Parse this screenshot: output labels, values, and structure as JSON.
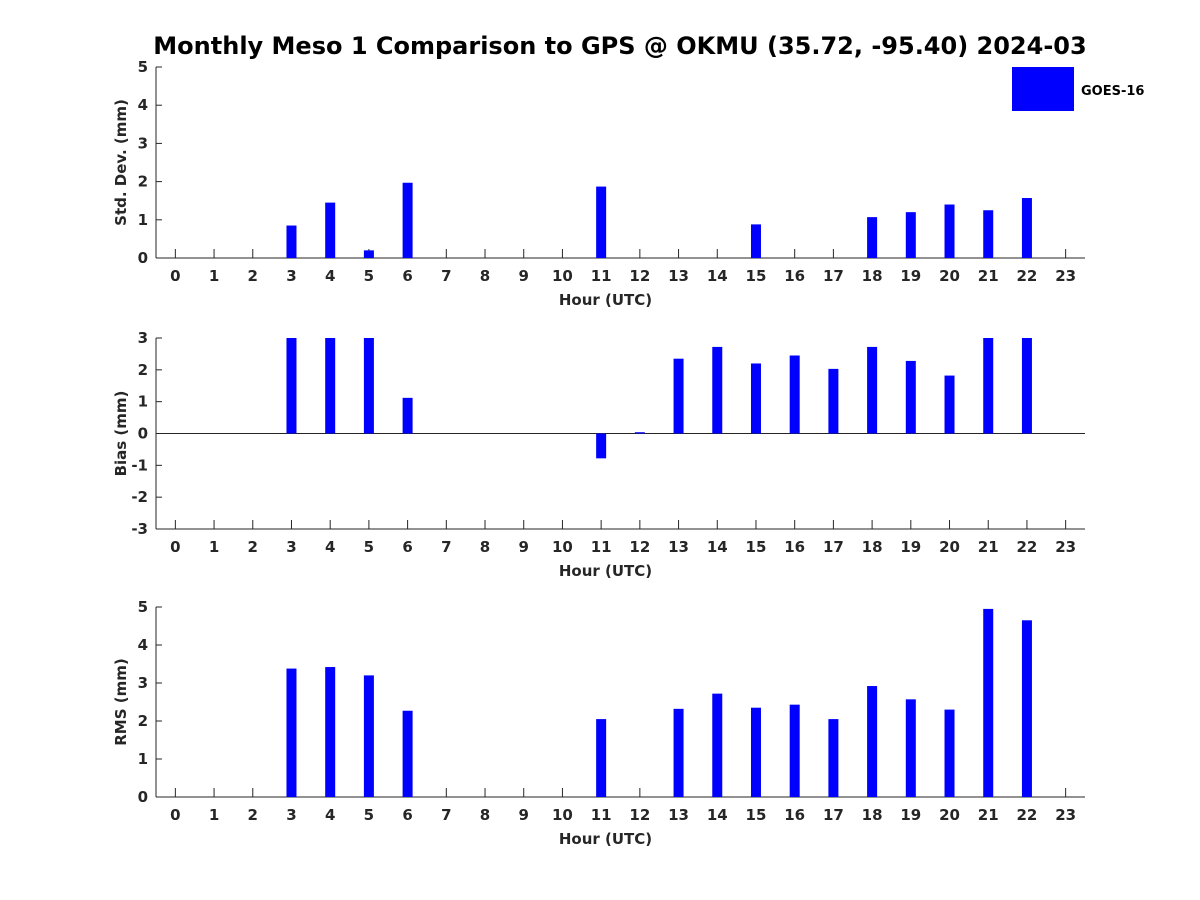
{
  "title": "Monthly Meso 1 Comparison to GPS @ OKMU (35.72, -95.40) 2024-03",
  "legend": {
    "label": "GOES-16",
    "color": "#0000ff",
    "placement": "top-right"
  },
  "bar_color": "#0000ff",
  "chart_data": [
    {
      "type": "bar",
      "xlabel": "Hour (UTC)",
      "ylabel": "Std. Dev. (mm)",
      "ylim": [
        0,
        5
      ],
      "yticks": [
        0,
        1,
        2,
        3,
        4,
        5
      ],
      "x": [
        0,
        1,
        2,
        3,
        4,
        5,
        6,
        7,
        8,
        9,
        10,
        11,
        12,
        13,
        14,
        15,
        16,
        17,
        18,
        19,
        20,
        21,
        22,
        23
      ],
      "values": [
        null,
        null,
        null,
        0.85,
        1.45,
        0.2,
        1.97,
        null,
        null,
        null,
        null,
        1.87,
        null,
        null,
        null,
        0.88,
        null,
        null,
        1.07,
        1.2,
        1.4,
        1.25,
        1.57,
        null
      ]
    },
    {
      "type": "bar",
      "xlabel": "Hour (UTC)",
      "ylabel": "Bias (mm)",
      "ylim": [
        -3,
        3
      ],
      "yticks": [
        -3,
        -2,
        -1,
        0,
        1,
        2,
        3
      ],
      "x": [
        0,
        1,
        2,
        3,
        4,
        5,
        6,
        7,
        8,
        9,
        10,
        11,
        12,
        13,
        14,
        15,
        16,
        17,
        18,
        19,
        20,
        21,
        22,
        23
      ],
      "values": [
        null,
        null,
        null,
        3.0,
        3.0,
        3.0,
        1.12,
        null,
        null,
        null,
        null,
        -0.78,
        0.04,
        2.35,
        2.72,
        2.2,
        2.45,
        2.03,
        2.72,
        2.28,
        1.82,
        3.0,
        3.0,
        null
      ]
    },
    {
      "type": "bar",
      "xlabel": "Hour (UTC)",
      "ylabel": "RMS (mm)",
      "ylim": [
        0,
        5
      ],
      "yticks": [
        0,
        1,
        2,
        3,
        4,
        5
      ],
      "x": [
        0,
        1,
        2,
        3,
        4,
        5,
        6,
        7,
        8,
        9,
        10,
        11,
        12,
        13,
        14,
        15,
        16,
        17,
        18,
        19,
        20,
        21,
        22,
        23
      ],
      "values": [
        null,
        null,
        null,
        3.38,
        3.42,
        3.2,
        2.27,
        null,
        null,
        null,
        null,
        2.05,
        null,
        2.32,
        2.72,
        2.35,
        2.43,
        2.05,
        2.92,
        2.57,
        2.3,
        4.95,
        4.65,
        null
      ]
    }
  ]
}
